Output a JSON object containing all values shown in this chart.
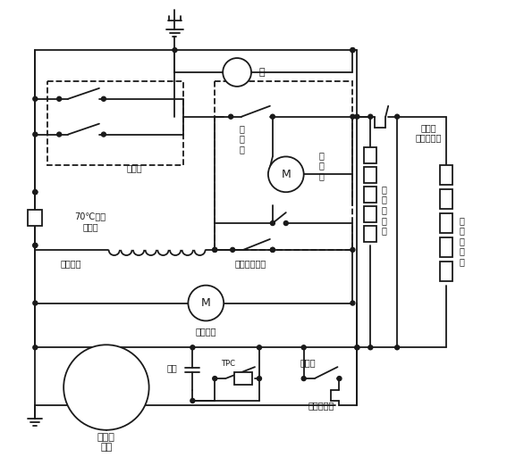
{
  "bg_color": "#ffffff",
  "line_color": "#1a1a1a",
  "fig_width": 5.67,
  "fig_height": 5.12,
  "dpi": 100,
  "labels": {
    "light": "灯",
    "door_switch": "门开关",
    "thermostat": "温\n控\n器",
    "timer": "定\n时\n器",
    "bimetal_switch_top": "双金属片开关",
    "defrost_heater": "除霜加热",
    "fuse": "70℃限温\n熔断器",
    "fan_motor": "风扇电机",
    "capacitor": "电容",
    "tpc": "TPC",
    "starter": "起动器",
    "compressor": "压缩机\n电机",
    "overload": "过载保护器",
    "bimetal_outer": "外部双\n金属片开关",
    "temp_heater": "温\n控\n电\n热\n丝",
    "comp_heater": "补\n偿\n电\n热\n丝"
  }
}
